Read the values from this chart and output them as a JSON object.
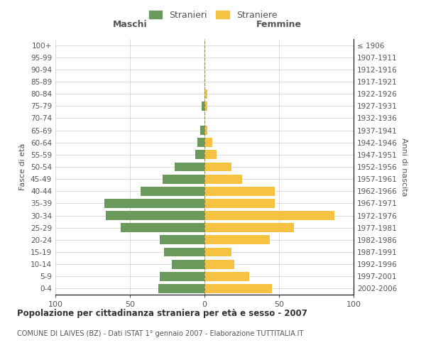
{
  "age_groups": [
    "0-4",
    "5-9",
    "10-14",
    "15-19",
    "20-24",
    "25-29",
    "30-34",
    "35-39",
    "40-44",
    "45-49",
    "50-54",
    "55-59",
    "60-64",
    "65-69",
    "70-74",
    "75-79",
    "80-84",
    "85-89",
    "90-94",
    "95-99",
    "100+"
  ],
  "birth_years": [
    "2002-2006",
    "1997-2001",
    "1992-1996",
    "1987-1991",
    "1982-1986",
    "1977-1981",
    "1972-1976",
    "1967-1971",
    "1962-1966",
    "1957-1961",
    "1952-1956",
    "1947-1951",
    "1942-1946",
    "1937-1941",
    "1932-1936",
    "1927-1931",
    "1922-1926",
    "1917-1921",
    "1912-1916",
    "1907-1911",
    "≤ 1906"
  ],
  "males": [
    31,
    30,
    22,
    27,
    30,
    56,
    66,
    67,
    43,
    28,
    20,
    6,
    5,
    3,
    0,
    2,
    0,
    0,
    0,
    0,
    0
  ],
  "females": [
    45,
    30,
    20,
    18,
    44,
    60,
    87,
    47,
    47,
    25,
    18,
    8,
    5,
    2,
    0,
    2,
    2,
    0,
    0,
    0,
    0
  ],
  "male_color": "#6a9a5b",
  "female_color": "#f5c242",
  "grid_color": "#cccccc",
  "text_color": "#555555",
  "title": "Popolazione per cittadinanza straniera per età e sesso - 2007",
  "subtitle": "COMUNE DI LAIVES (BZ) - Dati ISTAT 1° gennaio 2007 - Elaborazione TUTTITALIA.IT",
  "xlabel_left": "Maschi",
  "xlabel_right": "Femmine",
  "ylabel_left": "Fasce di età",
  "ylabel_right": "Anni di nascita",
  "legend_male": "Stranieri",
  "legend_female": "Straniere",
  "xlim": 100,
  "background_color": "#ffffff"
}
